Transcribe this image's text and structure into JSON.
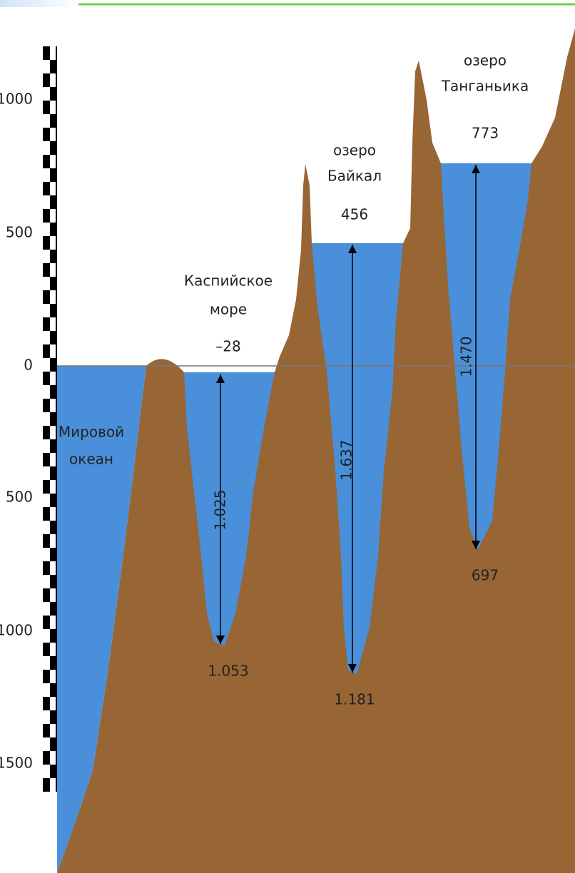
{
  "axis": {
    "labels": [
      "1000",
      "500",
      "0",
      "500",
      "1000",
      "1500"
    ]
  },
  "ocean": {
    "label": [
      "Мировой",
      "океан"
    ]
  },
  "lakes": [
    {
      "name": [
        "Каспийское",
        "море"
      ],
      "level": "–28",
      "depth": "1.025",
      "bottom": "1.053"
    },
    {
      "name": [
        "озеро",
        "Байкал"
      ],
      "level": "456",
      "depth": "1.637",
      "bottom": "1.181"
    },
    {
      "name": [
        "озеро",
        "Танганьика"
      ],
      "level": "773",
      "depth": "1.470",
      "bottom": "697"
    }
  ]
}
